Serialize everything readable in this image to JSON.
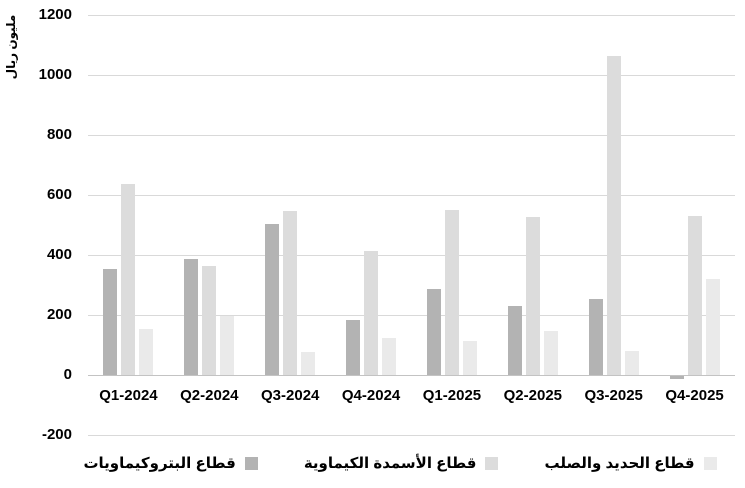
{
  "chart_data": {
    "type": "bar",
    "title": "",
    "xlabel": "",
    "ylabel": "مليون ريال",
    "categories": [
      "Q1-2024",
      "Q2-2024",
      "Q3-2024",
      "Q4-2024",
      "Q1-2025",
      "Q2-2025",
      "Q3-2025",
      "Q4-2025"
    ],
    "series": [
      {
        "name": "قطاع البتروكيماويات",
        "color": "#b3b3b3",
        "values": [
          352,
          388,
          505,
          183,
          286,
          230,
          252,
          -10
        ]
      },
      {
        "name": "قطاع الأسمدة الكيماوية",
        "color": "#dcdcdc",
        "values": [
          637,
          365,
          548,
          415,
          550,
          528,
          1062,
          531
        ]
      },
      {
        "name": "قطاع الحديد والصلب",
        "color": "#eaeaea",
        "values": [
          155,
          197,
          76,
          124,
          114,
          148,
          80,
          320
        ]
      }
    ],
    "ylim": [
      -200,
      1200
    ],
    "yticks": [
      1200,
      1000,
      800,
      600,
      400,
      200,
      0,
      -200
    ],
    "grid": true,
    "legend_position": "bottom"
  },
  "colors": {
    "background": "#ffffff",
    "gridline": "#d9d9d9",
    "zero_axis_line": "#c3c3c3",
    "text": "#000000"
  }
}
